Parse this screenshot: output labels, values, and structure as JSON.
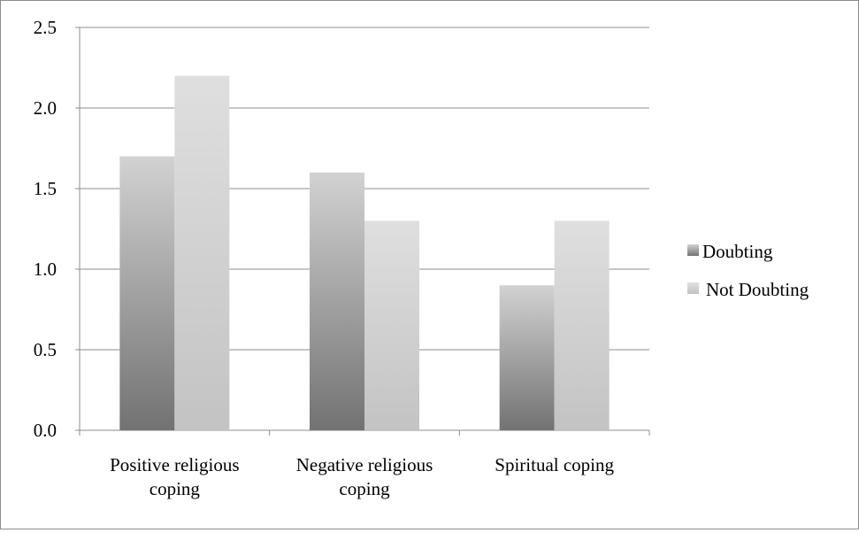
{
  "chart_data": {
    "type": "bar",
    "categories": [
      "Positive religious coping",
      "Negative religious coping",
      "Spiritual coping"
    ],
    "category_lines": [
      [
        "Positive religious",
        "coping"
      ],
      [
        "Negative religious",
        "coping"
      ],
      [
        "Spiritual coping"
      ]
    ],
    "series": [
      {
        "name": "Doubting",
        "values": [
          1.7,
          1.6,
          0.9
        ],
        "color_light": "#d2d2d2",
        "color_dark": "#727272"
      },
      {
        "name": "Not Doubting",
        "values": [
          2.2,
          1.3,
          1.3
        ],
        "color_light": "#dfdfdf",
        "color_dark": "#c3c3c3"
      }
    ],
    "yticks": [
      "0.0",
      "0.5",
      "1.0",
      "1.5",
      "2.0",
      "2.5"
    ],
    "ylim": [
      0,
      2.5
    ],
    "grid": true,
    "legend_position": "right",
    "title": "",
    "xlabel": "",
    "ylabel": ""
  }
}
